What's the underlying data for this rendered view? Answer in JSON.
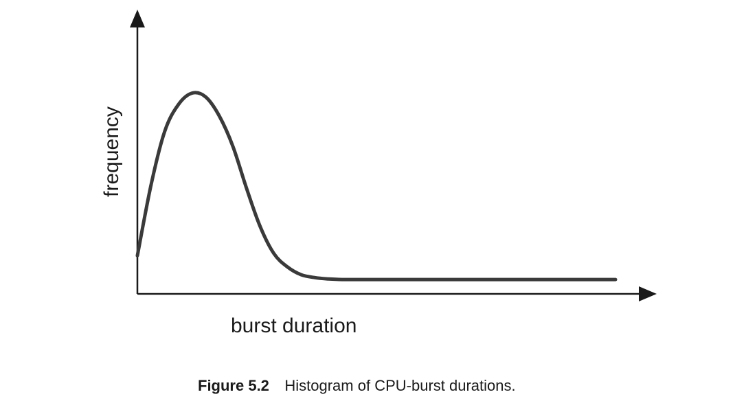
{
  "chart_data": {
    "type": "line",
    "xlabel": "burst duration",
    "ylabel": "frequency",
    "grid": false,
    "series": [
      {
        "x": [
          0,
          5,
          10,
          15,
          20,
          25,
          30,
          35,
          40,
          45,
          50,
          55,
          60,
          65,
          70,
          75,
          80,
          85,
          90,
          100,
          110,
          120,
          130,
          140,
          150,
          160,
          175
        ],
        "y": [
          0.15,
          0.52,
          0.8,
          0.94,
          1.0,
          0.98,
          0.88,
          0.72,
          0.5,
          0.3,
          0.16,
          0.09,
          0.05,
          0.035,
          0.028,
          0.025,
          0.025,
          0.025,
          0.025,
          0.025,
          0.025,
          0.025,
          0.025,
          0.025,
          0.025,
          0.025,
          0.025
        ]
      }
    ],
    "xlim": [
      0,
      220
    ],
    "ylim": [
      -0.05,
      1.25
    ],
    "color": "#3a3a3a"
  },
  "caption": {
    "number": "Figure 5.2",
    "text": "Histogram of CPU-burst durations."
  }
}
